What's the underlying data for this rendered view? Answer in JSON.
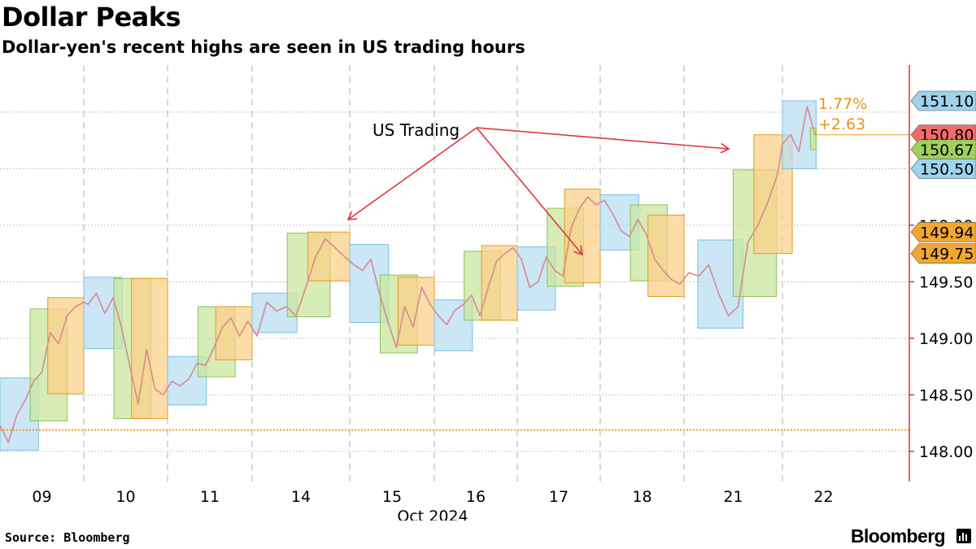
{
  "header": {
    "title": "Dollar Peaks",
    "subtitle": "Dollar-yen's recent highs are seen in US trading hours"
  },
  "footer": {
    "source": "Source: Bloomberg",
    "brand": "Bloomberg"
  },
  "colors": {
    "asia": "#b9def1",
    "europe": "#c9e59e",
    "us": "#fbd08a",
    "asia_stroke": "#7cc1e2",
    "europe_stroke": "#8cc257",
    "us_stroke": "#e59b1f",
    "price_line": "#d9898e",
    "axis_red": "#e0343f",
    "annotation": "#e0343f",
    "reference": "#f39a23"
  },
  "chart_data": {
    "type": "line",
    "title": "Dollar Peaks",
    "subtitle": "Dollar-yen's recent highs are seen in US trading hours",
    "x_axis": {
      "ticks": [
        "09",
        "10",
        "11",
        "14",
        "15",
        "16",
        "17",
        "18",
        "21",
        "22"
      ],
      "label": "Oct 2024"
    },
    "y_axis": {
      "ticks": [
        "148.00",
        "148.50",
        "149.00",
        "149.50",
        "150.00"
      ],
      "range": [
        147.85,
        151.2
      ],
      "side": "right",
      "grid": true
    },
    "reference_line": 148.19,
    "sessions": [
      {
        "day": 0,
        "kind": "asia",
        "start": 0.0,
        "end": 0.46,
        "low": 148.01,
        "high": 148.65
      },
      {
        "day": 0,
        "kind": "europe",
        "start": 0.36,
        "end": 0.8,
        "low": 148.27,
        "high": 149.26
      },
      {
        "day": 0,
        "kind": "us",
        "start": 0.57,
        "end": 1.0,
        "low": 148.51,
        "high": 149.36
      },
      {
        "day": 1,
        "kind": "asia",
        "start": 0.0,
        "end": 0.46,
        "low": 148.91,
        "high": 149.54
      },
      {
        "day": 1,
        "kind": "europe",
        "start": 0.36,
        "end": 0.8,
        "low": 148.29,
        "high": 149.53
      },
      {
        "day": 1,
        "kind": "us",
        "start": 0.57,
        "end": 1.0,
        "low": 148.29,
        "high": 149.53
      },
      {
        "day": 2,
        "kind": "asia",
        "start": 0.0,
        "end": 0.46,
        "low": 148.41,
        "high": 148.84
      },
      {
        "day": 2,
        "kind": "europe",
        "start": 0.36,
        "end": 0.8,
        "low": 148.66,
        "high": 149.28
      },
      {
        "day": 2,
        "kind": "us",
        "start": 0.57,
        "end": 1.0,
        "low": 148.81,
        "high": 149.28
      },
      {
        "day": 3,
        "kind": "asia",
        "start": 0.0,
        "end": 0.46,
        "low": 149.05,
        "high": 149.4
      },
      {
        "day": 3,
        "kind": "europe",
        "start": 0.36,
        "end": 0.8,
        "low": 149.19,
        "high": 149.93
      },
      {
        "day": 3,
        "kind": "us",
        "start": 0.57,
        "end": 1.0,
        "low": 149.51,
        "high": 149.94
      },
      {
        "day": 4,
        "kind": "asia",
        "start": 0.0,
        "end": 0.46,
        "low": 149.14,
        "high": 149.83
      },
      {
        "day": 4,
        "kind": "europe",
        "start": 0.36,
        "end": 0.8,
        "low": 148.87,
        "high": 149.56
      },
      {
        "day": 4,
        "kind": "us",
        "start": 0.57,
        "end": 1.0,
        "low": 148.94,
        "high": 149.54
      },
      {
        "day": 5,
        "kind": "asia",
        "start": 0.0,
        "end": 0.46,
        "low": 148.89,
        "high": 149.34
      },
      {
        "day": 5,
        "kind": "europe",
        "start": 0.36,
        "end": 0.8,
        "low": 149.16,
        "high": 149.77
      },
      {
        "day": 5,
        "kind": "us",
        "start": 0.57,
        "end": 1.0,
        "low": 149.16,
        "high": 149.82
      },
      {
        "day": 6,
        "kind": "asia",
        "start": 0.0,
        "end": 0.46,
        "low": 149.25,
        "high": 149.81
      },
      {
        "day": 6,
        "kind": "europe",
        "start": 0.36,
        "end": 0.8,
        "low": 149.46,
        "high": 150.15
      },
      {
        "day": 6,
        "kind": "us",
        "start": 0.57,
        "end": 1.0,
        "low": 149.49,
        "high": 150.32
      },
      {
        "day": 7,
        "kind": "asia",
        "start": 0.0,
        "end": 0.46,
        "low": 149.78,
        "high": 150.27
      },
      {
        "day": 7,
        "kind": "europe",
        "start": 0.36,
        "end": 0.8,
        "low": 149.51,
        "high": 150.18
      },
      {
        "day": 7,
        "kind": "us",
        "start": 0.57,
        "end": 1.0,
        "low": 149.37,
        "high": 150.09
      },
      {
        "day": 8,
        "kind": "asia",
        "start": 0.14,
        "end": 0.6,
        "low": 149.09,
        "high": 149.87
      },
      {
        "day": 8,
        "kind": "europe",
        "start": 0.5,
        "end": 0.94,
        "low": 149.37,
        "high": 150.49
      },
      {
        "day": 8,
        "kind": "us",
        "start": 0.71,
        "end": 1.1,
        "low": 149.75,
        "high": 150.8
      },
      {
        "day": 9,
        "kind": "asia",
        "start": 0.0,
        "end": 0.41,
        "low": 150.5,
        "high": 151.1
      },
      {
        "day": 9,
        "kind": "europe",
        "start": 0.34,
        "end": 0.41,
        "low": 150.67,
        "high": 150.86
      }
    ],
    "price_path": [
      [
        0,
        0.0,
        148.23
      ],
      [
        0,
        0.1,
        148.08
      ],
      [
        0,
        0.2,
        148.32
      ],
      [
        0,
        0.3,
        148.45
      ],
      [
        0,
        0.4,
        148.62
      ],
      [
        0,
        0.5,
        148.7
      ],
      [
        0,
        0.6,
        149.05
      ],
      [
        0,
        0.7,
        148.95
      ],
      [
        0,
        0.8,
        149.2
      ],
      [
        0,
        0.9,
        149.28
      ],
      [
        0,
        1.0,
        149.32
      ],
      [
        1,
        0.05,
        149.3
      ],
      [
        1,
        0.15,
        149.4
      ],
      [
        1,
        0.25,
        149.22
      ],
      [
        1,
        0.35,
        149.36
      ],
      [
        1,
        0.45,
        149.1
      ],
      [
        1,
        0.55,
        148.75
      ],
      [
        1,
        0.65,
        148.42
      ],
      [
        1,
        0.75,
        148.9
      ],
      [
        1,
        0.85,
        148.55
      ],
      [
        1,
        0.95,
        148.5
      ],
      [
        2,
        0.05,
        148.62
      ],
      [
        2,
        0.15,
        148.58
      ],
      [
        2,
        0.25,
        148.64
      ],
      [
        2,
        0.35,
        148.78
      ],
      [
        2,
        0.45,
        148.76
      ],
      [
        2,
        0.55,
        148.92
      ],
      [
        2,
        0.65,
        149.1
      ],
      [
        2,
        0.75,
        149.18
      ],
      [
        2,
        0.85,
        149.02
      ],
      [
        2,
        0.95,
        149.15
      ],
      [
        3,
        0.05,
        149.02
      ],
      [
        3,
        0.15,
        149.32
      ],
      [
        3,
        0.25,
        149.24
      ],
      [
        3,
        0.35,
        149.28
      ],
      [
        3,
        0.45,
        149.2
      ],
      [
        3,
        0.55,
        149.45
      ],
      [
        3,
        0.65,
        149.72
      ],
      [
        3,
        0.75,
        149.88
      ],
      [
        3,
        0.85,
        149.8
      ],
      [
        3,
        0.95,
        149.72
      ],
      [
        4,
        0.05,
        149.65
      ],
      [
        4,
        0.15,
        149.6
      ],
      [
        4,
        0.25,
        149.7
      ],
      [
        4,
        0.35,
        149.4
      ],
      [
        4,
        0.45,
        149.15
      ],
      [
        4,
        0.55,
        148.92
      ],
      [
        4,
        0.65,
        149.28
      ],
      [
        4,
        0.75,
        149.1
      ],
      [
        4,
        0.85,
        149.45
      ],
      [
        4,
        0.95,
        149.3
      ],
      [
        5,
        0.05,
        149.2
      ],
      [
        5,
        0.15,
        149.12
      ],
      [
        5,
        0.25,
        149.25
      ],
      [
        5,
        0.35,
        149.3
      ],
      [
        5,
        0.45,
        149.38
      ],
      [
        5,
        0.55,
        149.2
      ],
      [
        5,
        0.65,
        149.45
      ],
      [
        5,
        0.75,
        149.68
      ],
      [
        5,
        0.85,
        149.75
      ],
      [
        5,
        0.95,
        149.8
      ],
      [
        6,
        0.05,
        149.7
      ],
      [
        6,
        0.15,
        149.45
      ],
      [
        6,
        0.25,
        149.5
      ],
      [
        6,
        0.35,
        149.72
      ],
      [
        6,
        0.45,
        149.6
      ],
      [
        6,
        0.55,
        149.55
      ],
      [
        6,
        0.65,
        149.98
      ],
      [
        6,
        0.75,
        150.15
      ],
      [
        6,
        0.85,
        150.25
      ],
      [
        6,
        0.95,
        150.18
      ],
      [
        7,
        0.05,
        150.22
      ],
      [
        7,
        0.15,
        150.1
      ],
      [
        7,
        0.25,
        149.95
      ],
      [
        7,
        0.35,
        149.9
      ],
      [
        7,
        0.45,
        150.05
      ],
      [
        7,
        0.55,
        149.92
      ],
      [
        7,
        0.65,
        149.7
      ],
      [
        7,
        0.75,
        149.6
      ],
      [
        7,
        0.85,
        149.52
      ],
      [
        7,
        0.95,
        149.48
      ],
      [
        8,
        0.05,
        149.58
      ],
      [
        8,
        0.15,
        149.55
      ],
      [
        8,
        0.25,
        149.65
      ],
      [
        8,
        0.35,
        149.4
      ],
      [
        8,
        0.45,
        149.2
      ],
      [
        8,
        0.55,
        149.28
      ],
      [
        8,
        0.65,
        149.85
      ],
      [
        8,
        0.75,
        150.0
      ],
      [
        8,
        0.85,
        150.2
      ],
      [
        8,
        0.95,
        150.45
      ],
      [
        9,
        0.0,
        150.72
      ],
      [
        9,
        0.1,
        150.8
      ],
      [
        9,
        0.2,
        150.65
      ],
      [
        9,
        0.3,
        151.05
      ],
      [
        9,
        0.4,
        150.8
      ]
    ],
    "badges": [
      {
        "value": 151.1,
        "label": "151.10",
        "color": "#9fd3ee",
        "pos": 151.1
      },
      {
        "value": 150.8,
        "label": "150.80",
        "color": "#f26b6b",
        "pos": 150.8
      },
      {
        "value": 150.67,
        "label": "150.67",
        "color": "#9fcf5c",
        "pos": 150.67
      },
      {
        "value": 150.5,
        "label": "150.50",
        "color": "#9fd3ee",
        "pos": 150.5
      },
      {
        "value": 149.94,
        "label": "149.94",
        "color": "#f3a72f",
        "pos": 149.94
      },
      {
        "value": 149.75,
        "label": "149.75",
        "color": "#f3a72f",
        "pos": 149.75
      }
    ],
    "change_labels": {
      "pct": "1.77%",
      "abs": "+2.63"
    },
    "annotation": {
      "text": "US Trading"
    }
  }
}
